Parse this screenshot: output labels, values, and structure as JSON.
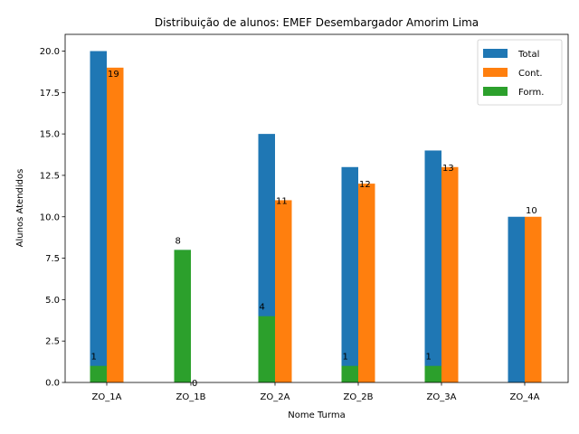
{
  "chart_data": {
    "type": "bar",
    "title": "Distribuição de alunos: EMEF Desembargador Amorim Lima",
    "xlabel": "Nome Turma",
    "ylabel": "Alunos Atendidos",
    "ylim": [
      0,
      21
    ],
    "yticks": [
      "0.0",
      "2.5",
      "5.0",
      "7.5",
      "10.0",
      "12.5",
      "15.0",
      "17.5",
      "20.0"
    ],
    "categories": [
      "ZO_1A",
      "ZO_1B",
      "ZO_2A",
      "ZO_2B",
      "ZO_3A",
      "ZO_4A"
    ],
    "series": [
      {
        "name": "Total",
        "color": "#1f77b4",
        "values": [
          20,
          8,
          15,
          13,
          14,
          10
        ]
      },
      {
        "name": "Cont.",
        "color": "#ff7f0e",
        "values": [
          19,
          0,
          11,
          12,
          13,
          10
        ]
      },
      {
        "name": "Form.",
        "color": "#2ca02c",
        "values": [
          1,
          8,
          4,
          1,
          1,
          0
        ]
      }
    ],
    "data_labels": {
      "Cont.": [
        "19",
        "0",
        "11",
        "12",
        "13",
        "10"
      ],
      "Form.": [
        "1",
        "8",
        "4",
        "1",
        "1",
        ""
      ]
    },
    "legend_position": "top-right",
    "grid": false
  }
}
